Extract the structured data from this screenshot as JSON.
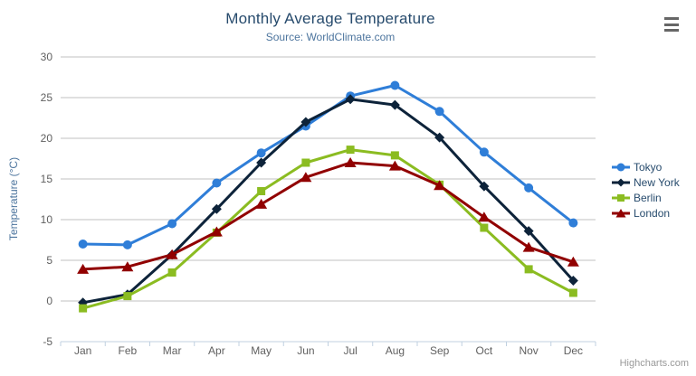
{
  "header": {
    "title": "Monthly Average Temperature",
    "subtitle": "Source: WorldClimate.com"
  },
  "credit": "Highcharts.com",
  "menu_icon": "hamburger-icon",
  "chart_data": {
    "type": "line",
    "title": "Monthly Average Temperature",
    "subtitle": "Source: WorldClimate.com",
    "categories": [
      "Jan",
      "Feb",
      "Mar",
      "Apr",
      "May",
      "Jun",
      "Jul",
      "Aug",
      "Sep",
      "Oct",
      "Nov",
      "Dec"
    ],
    "series": [
      {
        "name": "Tokyo",
        "color": "#2f7ed8",
        "marker": "circle",
        "values": [
          7.0,
          6.9,
          9.5,
          14.5,
          18.2,
          21.5,
          25.2,
          26.5,
          23.3,
          18.3,
          13.9,
          9.6
        ]
      },
      {
        "name": "New York",
        "color": "#0d233a",
        "marker": "diamond",
        "values": [
          -0.2,
          0.8,
          5.7,
          11.3,
          17.0,
          22.0,
          24.8,
          24.1,
          20.1,
          14.1,
          8.6,
          2.5
        ]
      },
      {
        "name": "Berlin",
        "color": "#8bbc21",
        "marker": "square",
        "values": [
          -0.9,
          0.6,
          3.5,
          8.4,
          13.5,
          17.0,
          18.6,
          17.9,
          14.3,
          9.0,
          3.9,
          1.0
        ]
      },
      {
        "name": "London",
        "color": "#910000",
        "marker": "triangle",
        "values": [
          3.9,
          4.2,
          5.7,
          8.5,
          11.9,
          15.2,
          17.0,
          16.6,
          14.2,
          10.3,
          6.6,
          4.8
        ]
      }
    ],
    "xlabel": "",
    "ylabel": "Temperature (°C)",
    "ylim": [
      -5,
      30
    ],
    "yticks": [
      -5,
      0,
      5,
      10,
      15,
      20,
      25,
      30
    ],
    "grid": true,
    "legend_position": "right"
  },
  "colors": {
    "title": "#274b6d",
    "subtitle": "#4d759e",
    "axis_label": "#606060",
    "axis_line": "#c0d0e0",
    "gridline": "#c0c0c0",
    "legend_text": "#274b6d",
    "credit": "#999999"
  }
}
